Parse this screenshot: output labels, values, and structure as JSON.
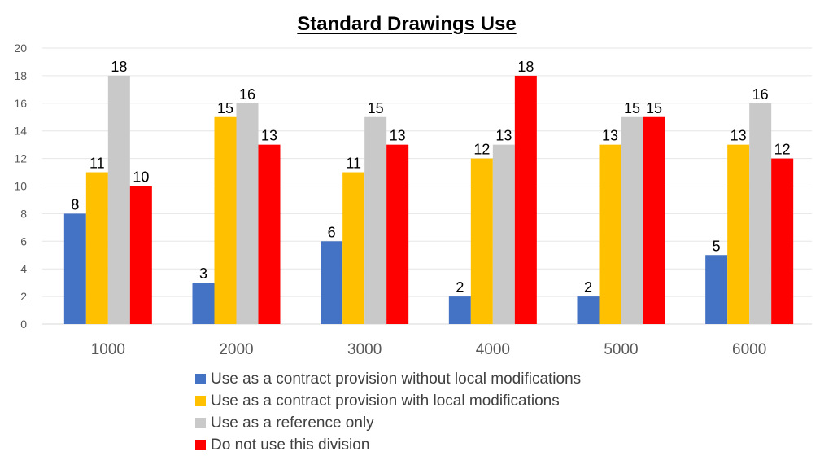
{
  "chart_data": {
    "type": "bar",
    "title": "Standard Drawings Use",
    "xlabel": "",
    "ylabel": "",
    "categories": [
      "1000",
      "2000",
      "3000",
      "4000",
      "5000",
      "6000"
    ],
    "ylim": [
      0,
      20
    ],
    "yticks": [
      0,
      2,
      4,
      6,
      8,
      10,
      12,
      14,
      16,
      18,
      20
    ],
    "grid": true,
    "legend_position": "bottom",
    "series": [
      {
        "name": "Use as a contract provision without local modifications",
        "color": "#4472c4",
        "values": [
          8,
          3,
          6,
          2,
          2,
          5
        ]
      },
      {
        "name": "Use as a contract provision with local modifications",
        "color": "#ffc000",
        "values": [
          11,
          15,
          11,
          12,
          13,
          13
        ]
      },
      {
        "name": "Use as a reference only",
        "color": "#c9c9c9",
        "values": [
          18,
          16,
          15,
          13,
          15,
          16
        ]
      },
      {
        "name": "Do not use this division",
        "color": "#ff0000",
        "values": [
          10,
          13,
          13,
          18,
          15,
          12
        ]
      }
    ]
  }
}
